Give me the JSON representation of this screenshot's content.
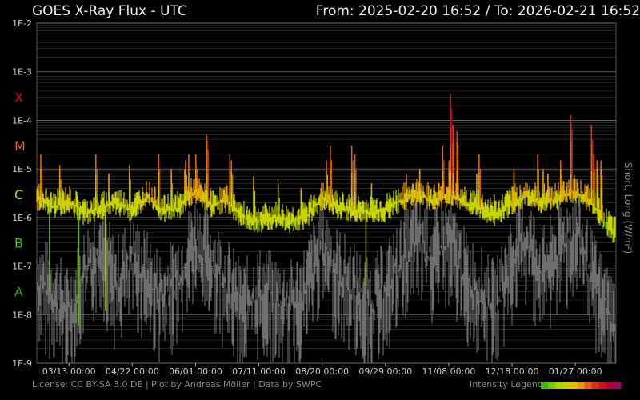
{
  "header": {
    "title": "GOES X-Ray Flux - UTC",
    "range": "From: 2025-02-20 16:52  /  To: 2026-02-21 16:52"
  },
  "footer": {
    "credits": "License: CC BY-SA 3.0 DE | Plot by Andreas Möller | Data by SWPC",
    "legend_label": "Intensity Legend"
  },
  "chart_data": {
    "type": "line",
    "ylabel": "Short, Long (W/m²)",
    "yscale": "log",
    "ylim": [
      1e-09,
      0.01
    ],
    "y_tick_labels": [
      "1E-2",
      "1E-3",
      "1E-4",
      "1E-5",
      "1E-6",
      "1E-7",
      "1E-8",
      "1E-9"
    ],
    "flare_classes": [
      {
        "label": "X",
        "color": "#cc1111"
      },
      {
        "label": "M",
        "color": "#e8600c"
      },
      {
        "label": "C",
        "color": "#c8d400"
      },
      {
        "label": "B",
        "color": "#55bb00"
      },
      {
        "label": "A",
        "color": "#33aa11"
      }
    ],
    "x_tick_labels": [
      "03/13 00:00",
      "04/22 00:00",
      "06/01 00:00",
      "07/11 00:00",
      "08/20 00:00",
      "09/29 00:00",
      "11/08 00:00",
      "12/18 00:00",
      "01/27 00:00"
    ],
    "x_range_days": [
      0,
      366.0
    ],
    "x_tick_day_offsets": [
      20.3,
      60.3,
      100.3,
      140.3,
      180.3,
      220.3,
      260.3,
      300.3,
      340.3
    ],
    "series": [
      {
        "name": "Long",
        "color": "#c8d400",
        "points": [
          [
            0,
            2.5e-06
          ],
          [
            10,
            1.6e-06
          ],
          [
            20,
            2.2e-06
          ],
          [
            30,
            1.2e-06
          ],
          [
            40,
            1.5e-06
          ],
          [
            50,
            2e-06
          ],
          [
            60,
            1.4e-06
          ],
          [
            70,
            2.8e-06
          ],
          [
            80,
            1.3e-06
          ],
          [
            90,
            1.6e-06
          ],
          [
            100,
            3.5e-06
          ],
          [
            110,
            1.8e-06
          ],
          [
            120,
            2.2e-06
          ],
          [
            130,
            1e-06
          ],
          [
            140,
            8.5e-07
          ],
          [
            150,
            1e-06
          ],
          [
            160,
            8.5e-07
          ],
          [
            170,
            1e-06
          ],
          [
            180,
            2.5e-06
          ],
          [
            190,
            1.6e-06
          ],
          [
            200,
            1.4e-06
          ],
          [
            210,
            1.3e-06
          ],
          [
            220,
            1.4e-06
          ],
          [
            230,
            2.2e-06
          ],
          [
            240,
            3e-06
          ],
          [
            250,
            2.3e-06
          ],
          [
            260,
            3e-06
          ],
          [
            270,
            2e-06
          ],
          [
            280,
            1.6e-06
          ],
          [
            290,
            1.1e-06
          ],
          [
            300,
            2e-06
          ],
          [
            310,
            2.8e-06
          ],
          [
            320,
            2e-06
          ],
          [
            330,
            2.5e-06
          ],
          [
            340,
            3.5e-06
          ],
          [
            350,
            2e-06
          ],
          [
            360,
            7e-07
          ],
          [
            366,
            4.5e-07
          ]
        ]
      },
      {
        "name": "Short",
        "color": "#777777",
        "points": [
          [
            0,
            8e-08
          ],
          [
            10,
            4e-08
          ],
          [
            20,
            1.5e-08
          ],
          [
            30,
            1e-07
          ],
          [
            40,
            4e-07
          ],
          [
            50,
            6e-08
          ],
          [
            60,
            2e-07
          ],
          [
            70,
            8e-08
          ],
          [
            80,
            3e-08
          ],
          [
            90,
            1e-07
          ],
          [
            100,
            5e-07
          ],
          [
            110,
            2e-07
          ],
          [
            120,
            6e-08
          ],
          [
            130,
            2e-08
          ],
          [
            140,
            4e-08
          ],
          [
            150,
            3e-08
          ],
          [
            160,
            2e-08
          ],
          [
            170,
            5e-08
          ],
          [
            180,
            4e-07
          ],
          [
            190,
            1e-07
          ],
          [
            200,
            5e-08
          ],
          [
            210,
            2e-08
          ],
          [
            220,
            5e-08
          ],
          [
            230,
            1.5e-07
          ],
          [
            240,
            6e-07
          ],
          [
            250,
            2e-07
          ],
          [
            260,
            5e-07
          ],
          [
            270,
            1e-07
          ],
          [
            280,
            4e-08
          ],
          [
            290,
            2e-08
          ],
          [
            300,
            2e-07
          ],
          [
            310,
            5e-07
          ],
          [
            320,
            1e-07
          ],
          [
            330,
            3e-07
          ],
          [
            340,
            8e-07
          ],
          [
            350,
            1e-07
          ],
          [
            360,
            2e-08
          ],
          [
            366,
            1e-08
          ]
        ]
      }
    ],
    "flares": [
      {
        "day": 2.5,
        "value": 2e-05
      },
      {
        "day": 14.5,
        "value": 1.2e-05
      },
      {
        "day": 21.0,
        "value": 3e-06
      },
      {
        "day": 37.3,
        "value": 2e-05
      },
      {
        "day": 45.5,
        "value": 8e-06
      },
      {
        "day": 58.5,
        "value": 1.2e-05
      },
      {
        "day": 77.0,
        "value": 2e-05
      },
      {
        "day": 85.0,
        "value": 1e-05
      },
      {
        "day": 93.5,
        "value": 1e-05
      },
      {
        "day": 94.0,
        "value": 1.5e-05
      },
      {
        "day": 96.0,
        "value": 2e-05
      },
      {
        "day": 100.5,
        "value": 2e-05
      },
      {
        "day": 107.5,
        "value": 5e-05
      },
      {
        "day": 122.0,
        "value": 2e-05
      },
      {
        "day": 123.0,
        "value": 1.5e-05
      },
      {
        "day": 137.0,
        "value": 7e-06
      },
      {
        "day": 152.5,
        "value": 5e-06
      },
      {
        "day": 167.0,
        "value": 4e-06
      },
      {
        "day": 183.0,
        "value": 1.5e-05
      },
      {
        "day": 185.5,
        "value": 3e-05
      },
      {
        "day": 199.0,
        "value": 3e-05
      },
      {
        "day": 201.0,
        "value": 2e-05
      },
      {
        "day": 211.5,
        "value": 5e-06
      },
      {
        "day": 233.5,
        "value": 8e-06
      },
      {
        "day": 237.5,
        "value": 5e-06
      },
      {
        "day": 242.0,
        "value": 1e-05
      },
      {
        "day": 256.5,
        "value": 3e-05
      },
      {
        "day": 260.5,
        "value": 1.5e-05
      },
      {
        "day": 261.5,
        "value": 0.00035
      },
      {
        "day": 263.0,
        "value": 8e-05
      },
      {
        "day": 265.5,
        "value": 6e-05
      },
      {
        "day": 278.0,
        "value": 8e-06
      },
      {
        "day": 279.5,
        "value": 2e-05
      },
      {
        "day": 289.0,
        "value": 3e-06
      },
      {
        "day": 301.5,
        "value": 1e-05
      },
      {
        "day": 316.5,
        "value": 2e-05
      },
      {
        "day": 320.0,
        "value": 1e-05
      },
      {
        "day": 323.0,
        "value": 8e-06
      },
      {
        "day": 331.0,
        "value": 1.5e-05
      },
      {
        "day": 337.5,
        "value": 0.00013
      },
      {
        "day": 350.5,
        "value": 8e-05
      },
      {
        "day": 352.0,
        "value": 2e-05
      },
      {
        "day": 354.0,
        "value": 1.5e-05
      },
      {
        "day": 356.5,
        "value": 1.5e-05
      }
    ],
    "drops": [
      {
        "day": 8.0,
        "value": 3e-08
      },
      {
        "day": 26.5,
        "value": 6e-09
      },
      {
        "day": 43.5,
        "value": 1.2e-08
      },
      {
        "day": 208.0,
        "value": 4e-08
      }
    ],
    "grid": true,
    "intensity_legend_colors": [
      "#44bb00",
      "#77cc00",
      "#aad400",
      "#c8d400",
      "#e8c000",
      "#e89a00",
      "#e8600c",
      "#d83010",
      "#cc1111",
      "#b00040",
      "#a00060"
    ]
  }
}
